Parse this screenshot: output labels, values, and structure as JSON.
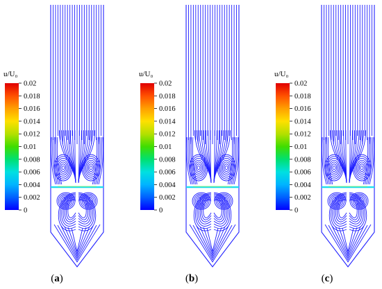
{
  "colorbar": {
    "title": "u/U₀",
    "ticks": [
      "0.02",
      "0.018",
      "0.016",
      "0.014",
      "0.012",
      "0.01",
      "0.008",
      "0.006",
      "0.004",
      "0.002",
      "0"
    ],
    "colormap": [
      "#0000ff",
      "#0060ff",
      "#00b4ff",
      "#00e0e0",
      "#00e070",
      "#40dd00",
      "#b4e000",
      "#ffe000",
      "#ffa000",
      "#ff5000",
      "#e00000"
    ]
  },
  "panels": [
    {
      "label": "a"
    },
    {
      "label": "b"
    },
    {
      "label": "c"
    }
  ],
  "streamline_color": "#1e1eff",
  "interface_color": "#22ddee"
}
